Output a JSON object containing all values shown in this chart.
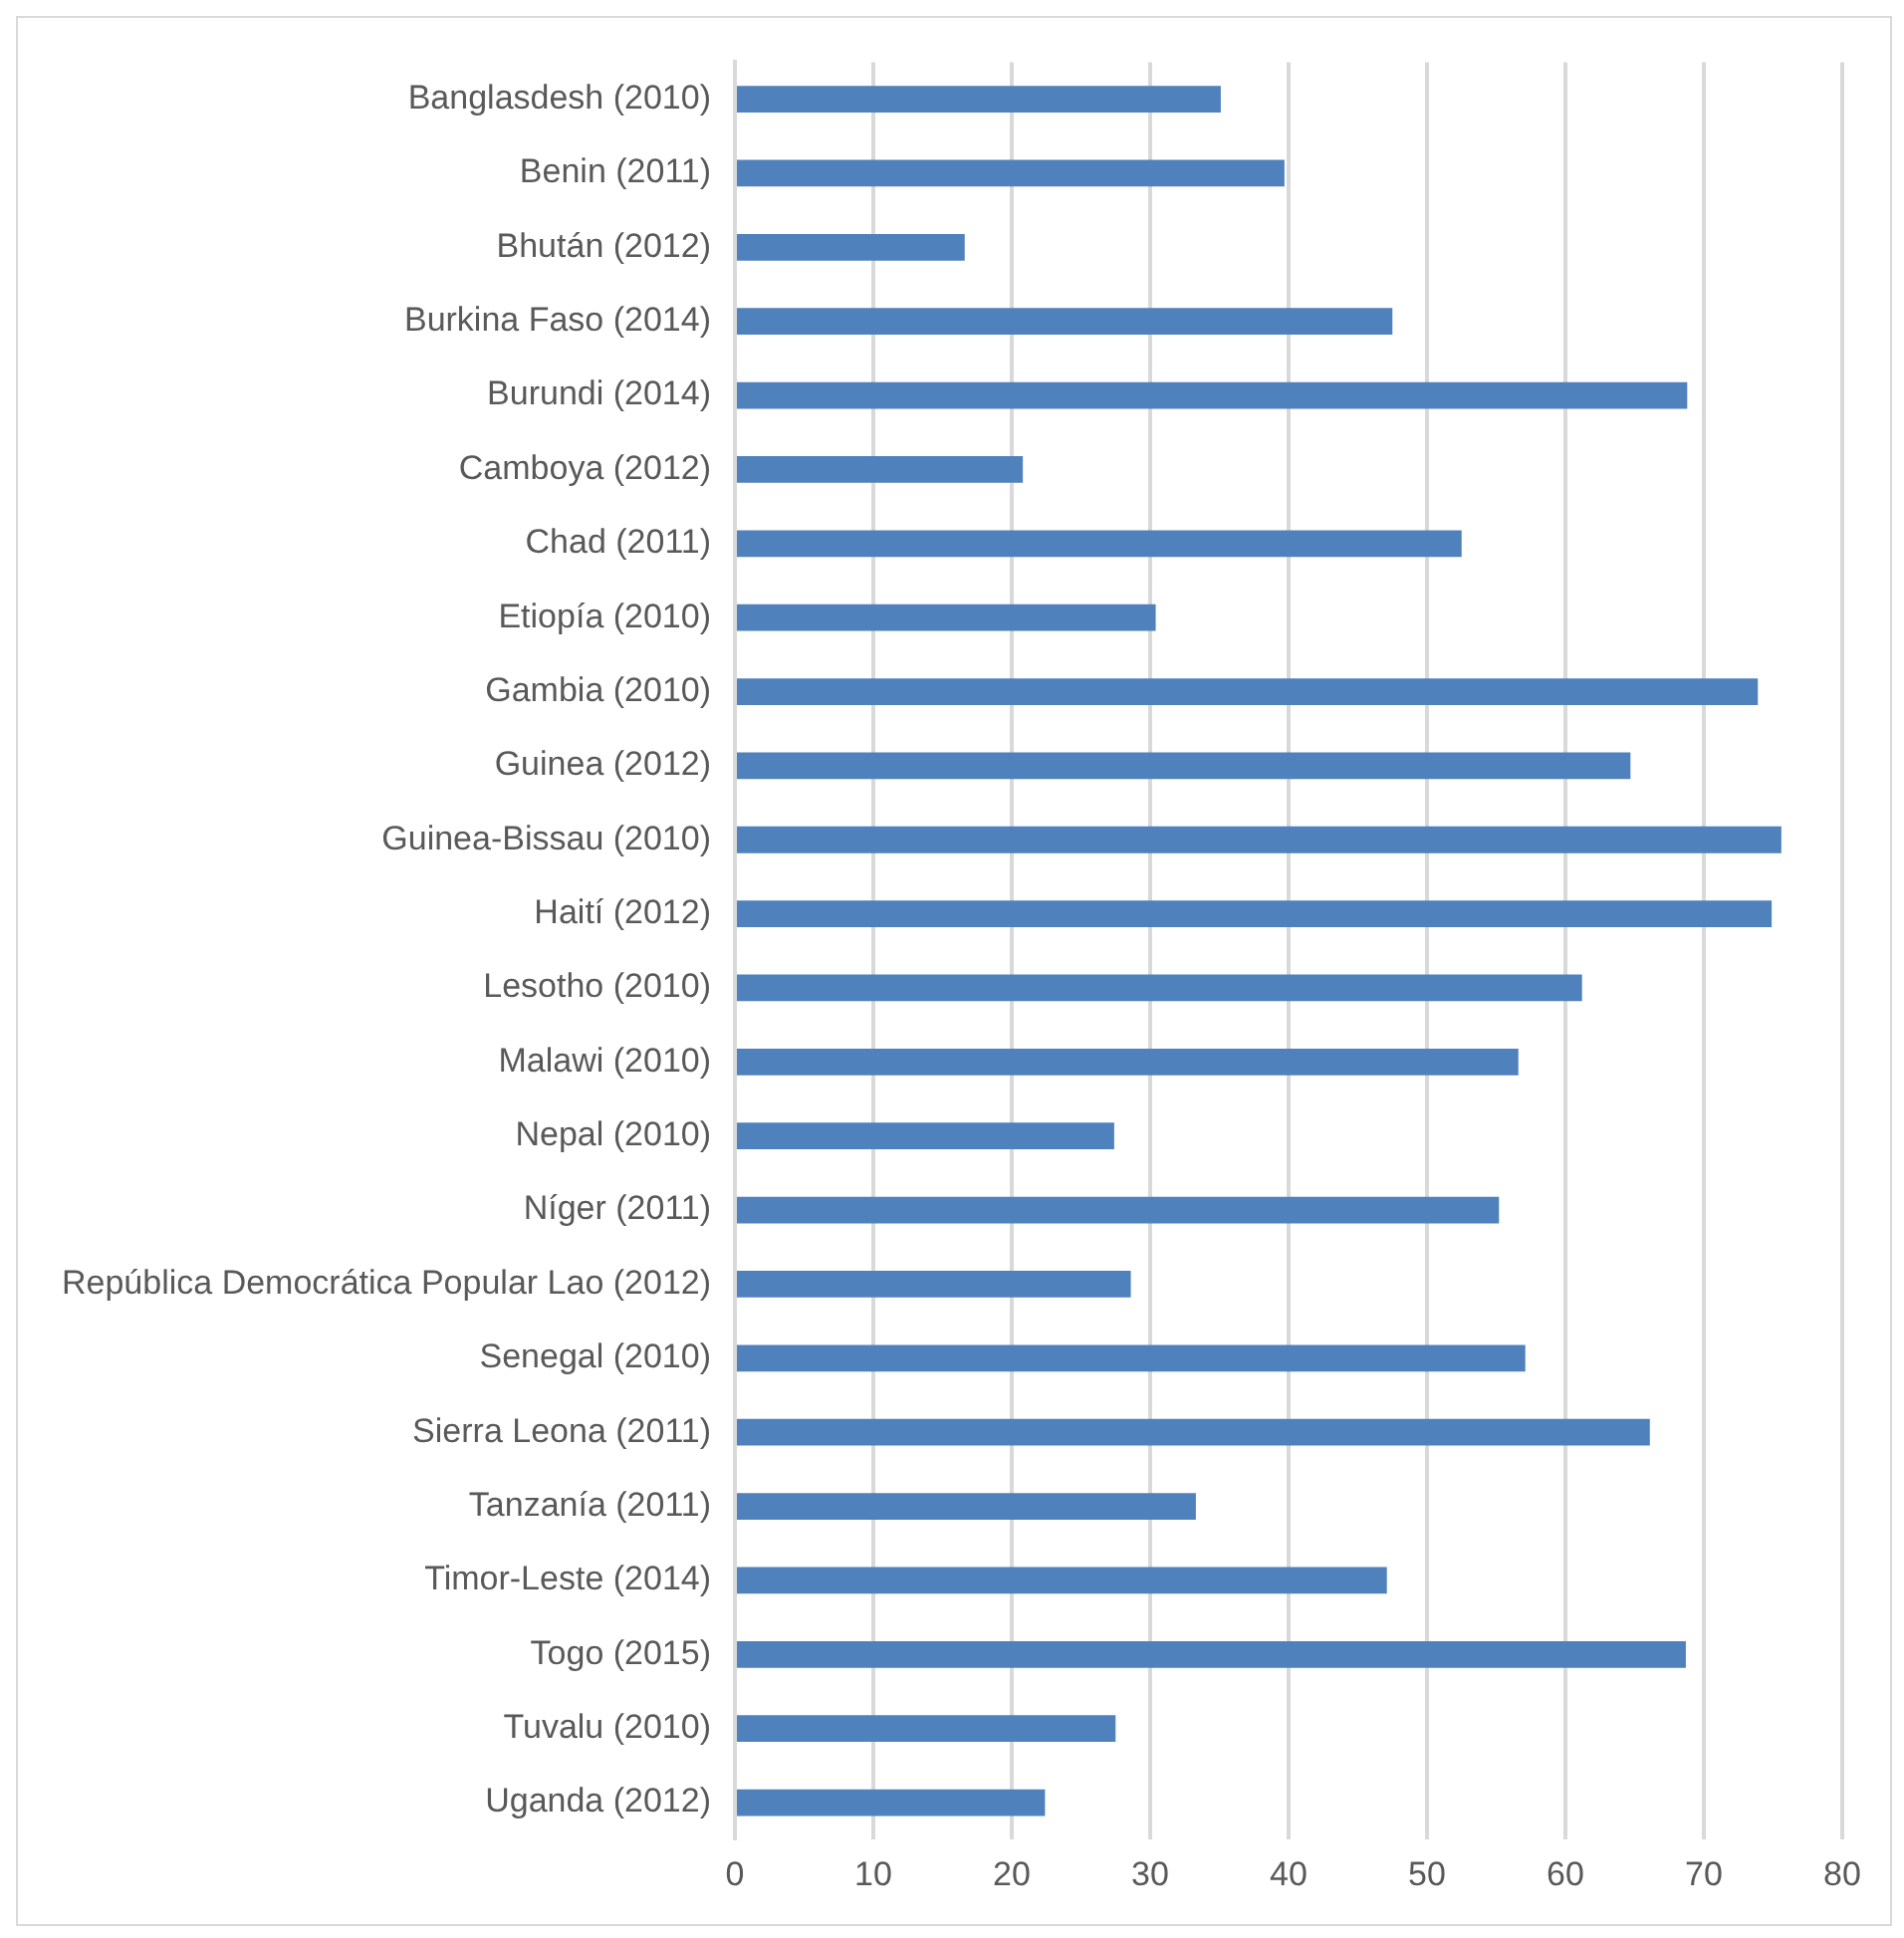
{
  "chart_data": {
    "type": "bar",
    "orientation": "horizontal",
    "categories": [
      "Banglasdesh (2010)",
      "Benin (2011)",
      "Bhután (2012)",
      "Burkina Faso (2014)",
      "Burundi (2014)",
      "Camboya (2012)",
      "Chad (2011)",
      "Etiopía (2010)",
      "Gambia (2010)",
      "Guinea (2012)",
      "Guinea-Bissau (2010)",
      "Haití (2012)",
      "Lesotho (2010)",
      "Malawi (2010)",
      "Nepal (2010)",
      "Níger (2011)",
      "República Democrática Popular Lao (2012)",
      "Senegal (2010)",
      "Sierra Leona (2011)",
      "Tanzanía (2011)",
      "Timor-Leste (2014)",
      "Togo (2015)",
      "Tuvalu (2010)",
      "Uganda (2012)"
    ],
    "values": [
      35.1,
      39.7,
      16.6,
      47.5,
      68.8,
      20.8,
      52.5,
      30.4,
      73.9,
      64.7,
      75.6,
      74.9,
      61.2,
      56.6,
      27.4,
      55.2,
      28.6,
      57.1,
      66.1,
      33.3,
      47.1,
      68.7,
      27.5,
      22.4
    ],
    "color": "#4f81bd",
    "xlim": [
      0,
      80
    ],
    "xticks": [
      0,
      10,
      20,
      30,
      40,
      50,
      60,
      70,
      80
    ],
    "grid": "x"
  }
}
